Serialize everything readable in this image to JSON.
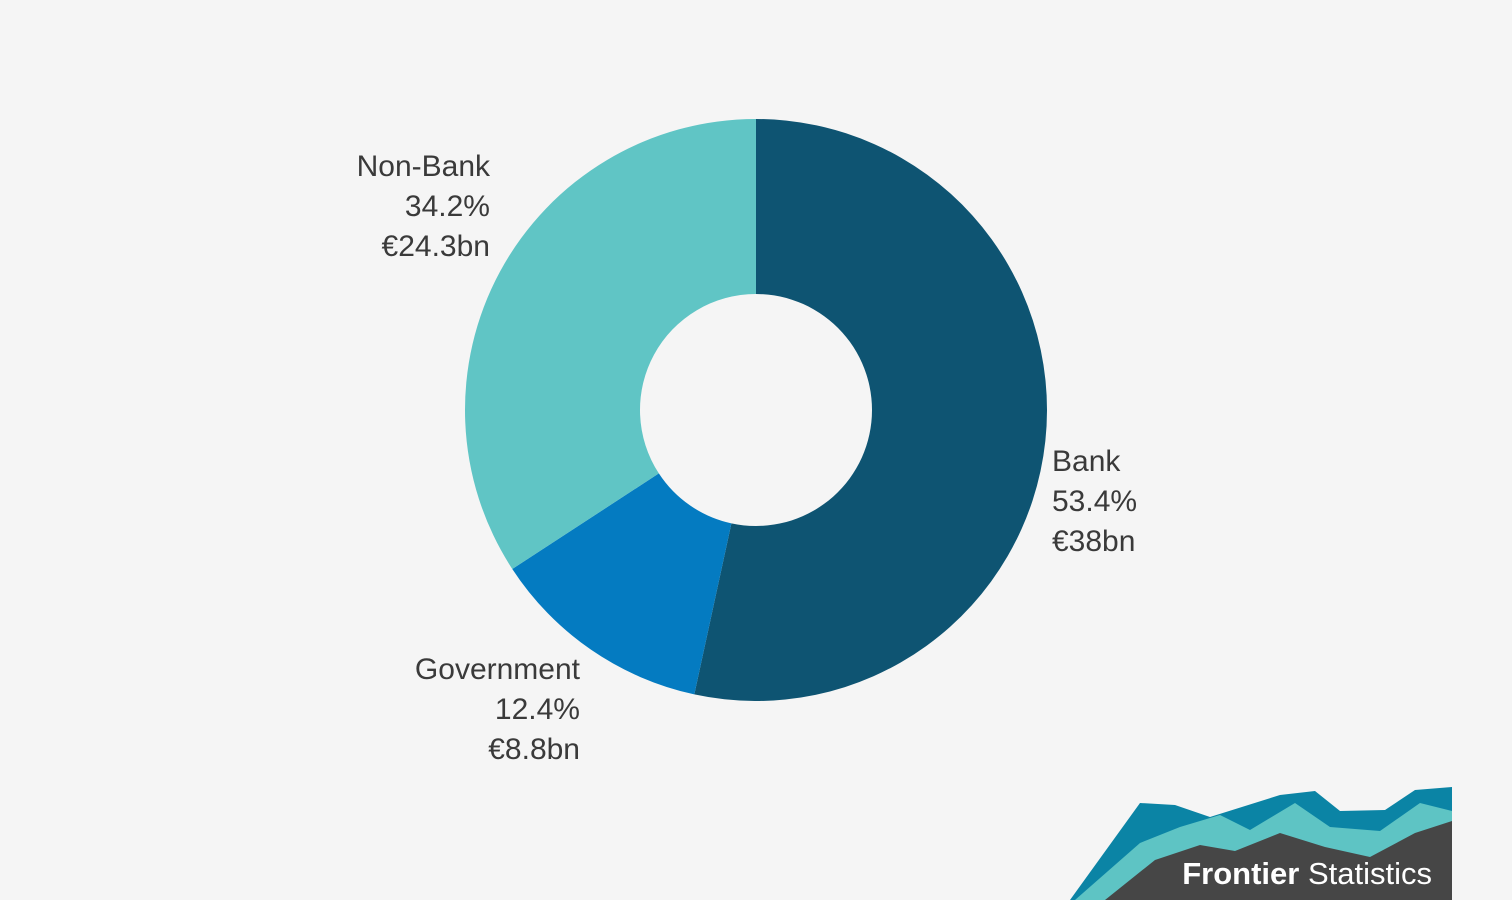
{
  "chart_data": {
    "type": "pie",
    "donut": true,
    "title": "",
    "legend": "none",
    "slices": [
      {
        "label": "Bank",
        "percent": 53.4,
        "value": "€38bn",
        "color": "#0e5472"
      },
      {
        "label": "Government",
        "percent": 12.4,
        "value": "€8.8bn",
        "color": "#047bc1"
      },
      {
        "label": "Non-Bank",
        "percent": 34.2,
        "value": "€24.3bn",
        "color": "#60c5c5"
      }
    ]
  },
  "labels": {
    "bank": {
      "name": "Bank",
      "percent": "53.4%",
      "value": "€38bn"
    },
    "government": {
      "name": "Government",
      "percent": "12.4%",
      "value": "€8.8bn"
    },
    "nonbank": {
      "name": "Non-Bank",
      "percent": "34.2%",
      "value": "€24.3bn"
    }
  },
  "logo": {
    "brand_bold": "Frontier",
    "brand_regular": "Statistics",
    "colors": {
      "dark": "#464646",
      "teal": "#5ec4c4",
      "blue": "#0b84a5"
    }
  }
}
